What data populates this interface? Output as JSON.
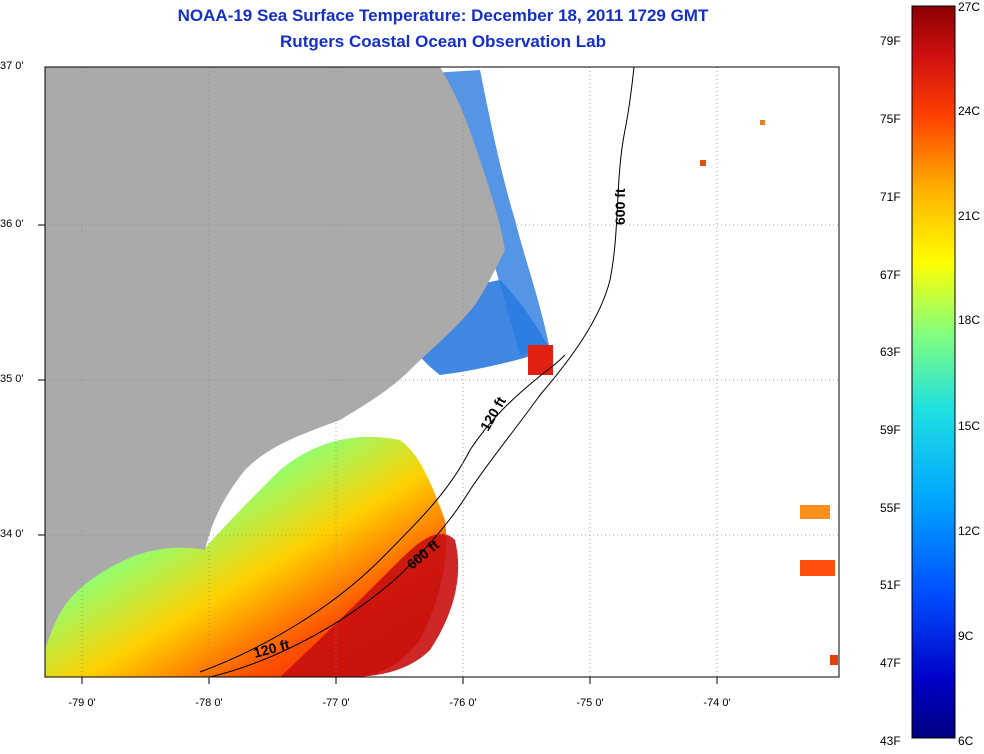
{
  "title": {
    "line1": "NOAA-19 Sea Surface Temperature:  December 18, 2011 1729 GMT",
    "line2": "Rutgers Coastal Ocean Observation Lab"
  },
  "axes": {
    "lat_labels": [
      "37 0'",
      "36 0'",
      "35 0'",
      "34 0'"
    ],
    "lon_labels": [
      "-79 0'",
      "-78 0'",
      "-77 0'",
      "-76 0'",
      "-75 0'",
      "-74 0'"
    ]
  },
  "contours": {
    "shelf_label": "120 ft",
    "slope_label": "600 ft"
  },
  "colorbar": {
    "fahrenheit": [
      "79F",
      "75F",
      "71F",
      "67F",
      "63F",
      "59F",
      "55F",
      "51F",
      "47F",
      "43F"
    ],
    "celsius": [
      "27C",
      "24C",
      "21C",
      "18C",
      "15C",
      "12C",
      "9C",
      "6C"
    ],
    "colors": [
      "#8b0000",
      "#d01010",
      "#ff3000",
      "#ff8000",
      "#ffc000",
      "#ffff00",
      "#c0ff40",
      "#60ffa0",
      "#20e0e0",
      "#00b0ff",
      "#0070ff",
      "#0030e0",
      "#0000a0",
      "#000080"
    ]
  },
  "colors": {
    "land": "#aaaaaa",
    "title": "#1530c8",
    "cold_water": "#2a7ae0"
  }
}
